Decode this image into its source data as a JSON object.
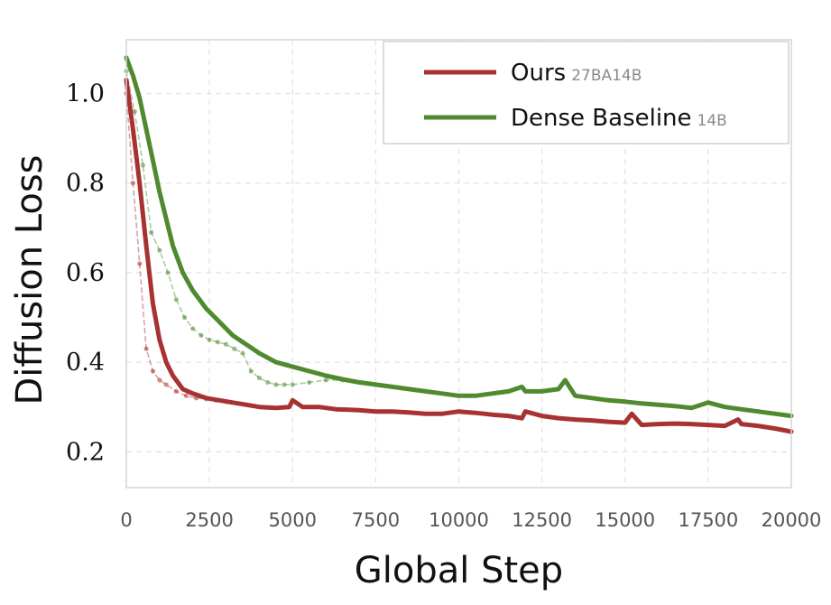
{
  "chart_data": {
    "type": "line",
    "xlabel": "Global Step",
    "ylabel": "Diffusion Loss",
    "xlim": [
      0,
      20000
    ],
    "ylim": [
      0.12,
      1.12
    ],
    "xticks": [
      0,
      2500,
      5000,
      7500,
      10000,
      12500,
      15000,
      17500,
      20000
    ],
    "xtick_labels": [
      "0",
      "2500",
      "5000",
      "7500",
      "10000",
      "12500",
      "15000",
      "17500",
      "20000"
    ],
    "yticks": [
      0.2,
      0.4,
      0.6,
      0.8,
      1.0
    ],
    "ytick_labels": [
      "0.2",
      "0.4",
      "0.6",
      "0.8",
      "1.0"
    ],
    "grid": true,
    "legend_position": "top-right",
    "colors": {
      "ours": "#a83232",
      "dense": "#4f8a2f"
    },
    "legend": [
      {
        "label": "Ours",
        "sublabel": "27BA14B"
      },
      {
        "label": "Dense Baseline",
        "sublabel": "14B"
      }
    ],
    "series": [
      {
        "name": "Ours",
        "x": [
          0,
          200,
          400,
          600,
          800,
          1000,
          1200,
          1400,
          1700,
          2000,
          2400,
          2800,
          3200,
          3600,
          4000,
          4500,
          4900,
          5000,
          5300,
          5800,
          6300,
          7000,
          7500,
          8000,
          8500,
          9000,
          9500,
          10000,
          10500,
          11000,
          11500,
          11900,
          12000,
          12500,
          13000,
          13500,
          14000,
          14500,
          15000,
          15200,
          15500,
          16000,
          16500,
          17000,
          17500,
          18000,
          18400,
          18500,
          19000,
          19500,
          20000
        ],
        "values": [
          1.03,
          0.92,
          0.8,
          0.66,
          0.53,
          0.45,
          0.4,
          0.37,
          0.34,
          0.33,
          0.32,
          0.315,
          0.31,
          0.305,
          0.3,
          0.298,
          0.3,
          0.315,
          0.3,
          0.3,
          0.295,
          0.293,
          0.29,
          0.29,
          0.288,
          0.285,
          0.285,
          0.29,
          0.287,
          0.283,
          0.28,
          0.275,
          0.29,
          0.28,
          0.275,
          0.272,
          0.27,
          0.267,
          0.265,
          0.285,
          0.26,
          0.262,
          0.263,
          0.262,
          0.26,
          0.258,
          0.272,
          0.262,
          0.258,
          0.252,
          0.245
        ]
      },
      {
        "name": "Dense Baseline",
        "x": [
          0,
          200,
          400,
          600,
          800,
          1000,
          1200,
          1400,
          1700,
          2000,
          2400,
          2800,
          3200,
          3600,
          4000,
          4500,
          5000,
          5500,
          6000,
          6500,
          7000,
          7500,
          8000,
          8500,
          9000,
          9500,
          10000,
          10500,
          11000,
          11500,
          11900,
          12000,
          12500,
          13000,
          13200,
          13500,
          14000,
          14500,
          15000,
          15500,
          16000,
          16500,
          17000,
          17500,
          18000,
          18500,
          19000,
          19500,
          20000
        ],
        "values": [
          1.08,
          1.04,
          0.99,
          0.92,
          0.85,
          0.78,
          0.72,
          0.66,
          0.6,
          0.56,
          0.52,
          0.49,
          0.46,
          0.44,
          0.42,
          0.4,
          0.39,
          0.38,
          0.37,
          0.362,
          0.355,
          0.35,
          0.345,
          0.34,
          0.335,
          0.33,
          0.325,
          0.325,
          0.33,
          0.335,
          0.345,
          0.335,
          0.335,
          0.34,
          0.36,
          0.325,
          0.32,
          0.315,
          0.312,
          0.308,
          0.305,
          0.302,
          0.298,
          0.31,
          0.3,
          0.295,
          0.29,
          0.285,
          0.28
        ]
      },
      {
        "name": "",
        "x": [
          0,
          200,
          400,
          600,
          800,
          1000,
          1200,
          1500,
          1800,
          2100,
          2400,
          2700,
          3000
        ],
        "values": [
          1.0,
          0.8,
          0.62,
          0.43,
          0.38,
          0.36,
          0.35,
          0.335,
          0.325,
          0.32,
          0.318,
          0.315,
          0.312
        ]
      },
      {
        "name": "",
        "x": [
          0,
          250,
          500,
          750,
          1000,
          1250,
          1500,
          1750,
          2000,
          2250,
          2500,
          2750,
          3000,
          3250,
          3500,
          3750,
          4000,
          4250,
          4500,
          4750,
          5000,
          5500,
          6000,
          6500,
          7000
        ],
        "values": [
          1.05,
          0.96,
          0.84,
          0.69,
          0.65,
          0.6,
          0.54,
          0.5,
          0.475,
          0.46,
          0.45,
          0.445,
          0.44,
          0.43,
          0.42,
          0.38,
          0.365,
          0.355,
          0.35,
          0.35,
          0.35,
          0.355,
          0.36,
          0.36,
          0.355
        ]
      }
    ]
  }
}
